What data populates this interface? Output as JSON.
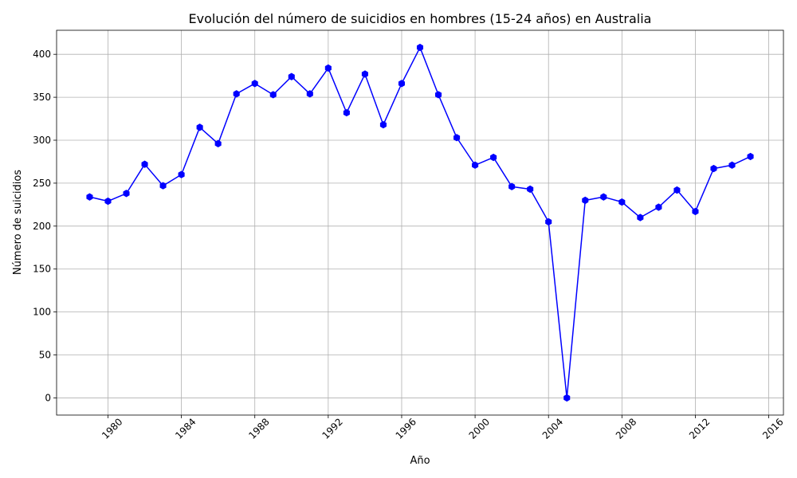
{
  "chart_data": {
    "type": "line",
    "title": "Evolución del número de suicidios en hombres (15-24 años) en Australia",
    "xlabel": "Año",
    "ylabel": "Número de suicidios",
    "x": [
      1979,
      1980,
      1981,
      1982,
      1983,
      1984,
      1985,
      1986,
      1987,
      1988,
      1989,
      1990,
      1991,
      1992,
      1993,
      1994,
      1995,
      1996,
      1997,
      1998,
      1999,
      2000,
      2001,
      2002,
      2003,
      2004,
      2005,
      2006,
      2007,
      2008,
      2009,
      2010,
      2011,
      2012,
      2013,
      2014,
      2015
    ],
    "series": [
      {
        "values": [
          234,
          229,
          238,
          272,
          247,
          260,
          315,
          296,
          354,
          366,
          353,
          374,
          354,
          384,
          332,
          377,
          318,
          366,
          408,
          353,
          303,
          271,
          280,
          246,
          243,
          205,
          0,
          230,
          234,
          228,
          210,
          222,
          242,
          217,
          267,
          271,
          281
        ],
        "color": "#0000ff",
        "marker": "hexagon"
      }
    ],
    "xlim": [
      1977.2,
      2016.8
    ],
    "ylim": [
      -20,
      428
    ],
    "xticks": [
      1980,
      1984,
      1988,
      1992,
      1996,
      2000,
      2004,
      2008,
      2012,
      2016
    ],
    "yticks": [
      0,
      50,
      100,
      150,
      200,
      250,
      300,
      350,
      400
    ],
    "grid": true
  }
}
